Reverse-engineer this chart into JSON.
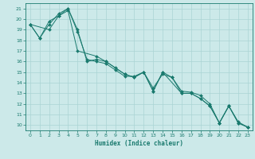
{
  "xlabel": "Humidex (Indice chaleur)",
  "bg_color": "#cce9e9",
  "grid_color": "#aad4d4",
  "line_color": "#1a7a6e",
  "xlim": [
    -0.5,
    23.5
  ],
  "ylim": [
    9.5,
    21.5
  ],
  "xticks": [
    0,
    1,
    2,
    3,
    4,
    5,
    6,
    7,
    8,
    9,
    10,
    11,
    12,
    13,
    14,
    15,
    16,
    17,
    18,
    19,
    20,
    21,
    22,
    23
  ],
  "yticks": [
    10,
    11,
    12,
    13,
    14,
    15,
    16,
    17,
    18,
    19,
    20,
    21
  ],
  "lines": [
    {
      "x": [
        0,
        1,
        2,
        3,
        4,
        5,
        6,
        7,
        8,
        9,
        10,
        11,
        12,
        13,
        14,
        15,
        16,
        17,
        18,
        19,
        20,
        21,
        22,
        23
      ],
      "y": [
        19.5,
        18.2,
        19.8,
        20.3,
        21.0,
        19.0,
        16.0,
        16.2,
        16.0,
        15.4,
        14.8,
        14.5,
        15.0,
        13.2,
        15.0,
        14.5,
        13.2,
        13.1,
        12.8,
        12.0,
        10.2,
        11.8,
        10.3,
        9.8
      ]
    },
    {
      "x": [
        0,
        1,
        2,
        3,
        4,
        5,
        6,
        7,
        8,
        9,
        10,
        11,
        12,
        13,
        14,
        15,
        16,
        17,
        18,
        19,
        20,
        21,
        22,
        23
      ],
      "y": [
        19.5,
        18.2,
        19.5,
        20.5,
        21.0,
        18.8,
        16.2,
        16.0,
        15.8,
        15.2,
        14.6,
        14.6,
        15.0,
        13.5,
        14.8,
        14.5,
        13.0,
        13.0,
        12.5,
        11.8,
        10.2,
        11.8,
        10.2,
        9.8
      ]
    },
    {
      "x": [
        0,
        2,
        3,
        4,
        5,
        7,
        8,
        10,
        11,
        12,
        13,
        14,
        16,
        17,
        18,
        19,
        20,
        21,
        22,
        23
      ],
      "y": [
        19.5,
        19.0,
        20.3,
        20.8,
        17.0,
        16.5,
        16.0,
        14.8,
        14.5,
        15.0,
        13.2,
        15.0,
        13.0,
        13.0,
        12.5,
        11.8,
        10.2,
        11.8,
        10.2,
        9.8
      ]
    }
  ]
}
